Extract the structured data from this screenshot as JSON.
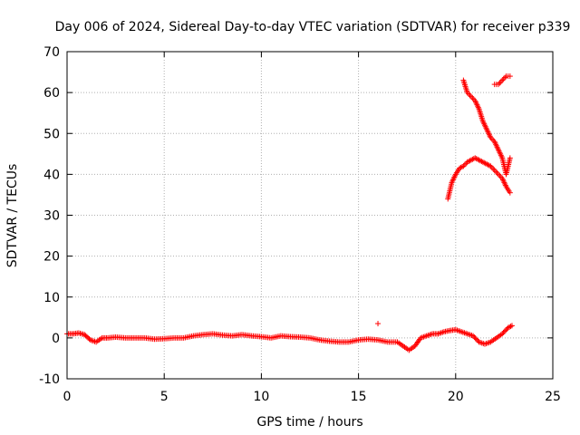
{
  "chart_data": {
    "type": "scatter",
    "title": "Day 006 of 2024, Sidereal Day-to-day VTEC variation (SDTVAR) for receiver p339",
    "xlabel": "GPS time / hours",
    "ylabel": "SDTVAR / TECUs",
    "xlim": [
      0,
      25
    ],
    "ylim": [
      -10,
      70
    ],
    "xticks": [
      0,
      5,
      10,
      15,
      20,
      25
    ],
    "yticks": [
      -10,
      0,
      10,
      20,
      30,
      40,
      50,
      60,
      70
    ],
    "grid": true,
    "marker": "+",
    "color": "#ff0000",
    "series": [
      {
        "name": "baseline",
        "x": [
          0,
          0.3,
          0.6,
          0.9,
          1.2,
          1.5,
          1.8,
          2.1,
          2.5,
          3.0,
          3.5,
          4.0,
          4.5,
          5.0,
          5.5,
          6.0,
          6.5,
          7.0,
          7.5,
          8.0,
          8.5,
          9.0,
          9.5,
          10.0,
          10.5,
          11.0,
          11.5,
          12.0,
          12.5,
          13.0,
          13.5,
          14.0,
          14.5,
          15.0,
          15.5,
          16.0,
          16.5,
          17.0,
          17.3,
          17.6,
          17.9,
          18.2,
          18.5,
          18.8,
          19.1,
          19.4,
          19.7,
          20.0,
          20.3,
          20.6,
          20.9,
          21.2,
          21.5,
          21.8,
          22.1,
          22.4,
          22.7,
          22.9
        ],
        "y": [
          1,
          1,
          1.2,
          0.8,
          -0.5,
          -1,
          0,
          0,
          0.2,
          0,
          0,
          0,
          -0.3,
          -0.2,
          0,
          0,
          0.5,
          0.8,
          1,
          0.7,
          0.5,
          0.8,
          0.5,
          0.3,
          0,
          0.5,
          0.3,
          0.2,
          0,
          -0.5,
          -0.8,
          -1,
          -1,
          -0.5,
          -0.3,
          -0.5,
          -1,
          -1,
          -2,
          -3,
          -2,
          0,
          0.5,
          1,
          1,
          1.5,
          1.8,
          2,
          1.5,
          1,
          0.5,
          -1,
          -1.5,
          -1,
          0,
          1,
          2.5,
          3
        ]
      },
      {
        "name": "evening-upper",
        "x": [
          20.4,
          20.6,
          20.8,
          21.0,
          21.2,
          21.4,
          21.6,
          21.8,
          22.0,
          22.2,
          22.4,
          22.6,
          22.8
        ],
        "y": [
          63,
          60,
          59,
          58,
          56,
          53,
          51,
          49,
          48,
          46,
          44,
          40,
          44
        ]
      },
      {
        "name": "evening-lower",
        "x": [
          19.6,
          19.8,
          20.0,
          20.2,
          20.4,
          20.6,
          20.8,
          21.0,
          21.2,
          21.4,
          21.6,
          21.8,
          22.0,
          22.2,
          22.4,
          22.6,
          22.8
        ],
        "y": [
          34,
          38,
          40,
          41.5,
          42,
          43,
          43.5,
          44,
          43.5,
          43,
          42.5,
          42,
          41,
          40,
          39,
          37,
          35.5
        ]
      },
      {
        "name": "late-upper",
        "x": [
          22.0,
          22.2,
          22.4,
          22.6,
          22.8
        ],
        "y": [
          62,
          62,
          63,
          64,
          64
        ]
      },
      {
        "name": "outlier",
        "x": [
          16.0
        ],
        "y": [
          3.5
        ]
      }
    ]
  }
}
